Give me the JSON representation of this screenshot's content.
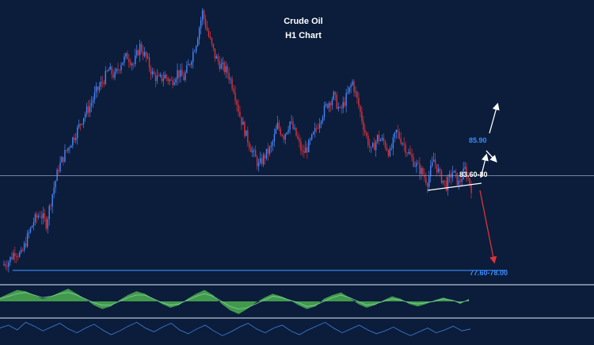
{
  "colors": {
    "background": "#0b1d3a",
    "bull": "#4a86ff",
    "bear": "#e0313a",
    "label_blue": "#3b8cff",
    "arrow_white": "#ffffff",
    "arrow_red": "#e0313a",
    "histogram": "#4caf50",
    "signal_line": "#7fd3a0",
    "rsi_line": "#3f7fe0",
    "separator": "#b8c2d6"
  },
  "chart_data": {
    "type": "line",
    "title": "Crude Oil",
    "subtitle": "H1 Chart",
    "xlabel": "",
    "ylabel": "",
    "ylim": [
      77.2,
      90.9
    ],
    "series": [
      {
        "values": [
          77.9,
          78.1,
          78.6,
          78.4,
          79.3,
          80.1,
          80.5,
          80.0,
          81.5,
          82.8,
          83.5,
          84.1,
          84.7,
          85.4,
          85.9,
          86.6,
          87.1,
          87.7,
          87.4,
          88.1,
          88.4,
          88.0,
          88.9,
          88.3,
          87.5,
          87.2,
          87.4,
          87.1,
          87.6,
          87.3,
          88.1,
          89.1,
          90.6,
          89.4,
          88.4,
          87.9,
          87.6,
          86.8,
          85.4,
          84.4,
          83.6,
          82.9,
          83.4,
          83.8,
          84.9,
          84.4,
          85.1,
          84.4,
          83.5,
          83.9,
          84.6,
          85.4,
          86.0,
          86.4,
          85.6,
          86.3,
          87.1,
          85.9,
          84.6,
          83.6,
          84.3,
          84.1,
          83.5,
          84.6,
          84.1,
          83.5,
          83.0,
          82.6,
          82.1,
          83.2,
          82.4,
          81.9,
          82.6,
          82.0,
          82.7,
          81.8
        ]
      }
    ],
    "levels": [
      {
        "label": "85.90",
        "value": 85.9
      },
      {
        "label": "83.60-80",
        "value": 83.7
      },
      {
        "label": "77.60-78.00",
        "value": 77.8
      }
    ],
    "horizontal_line": 82.4,
    "macd": {
      "histogram": [
        0.3,
        0.6,
        0.9,
        0.8,
        0.5,
        0.2,
        0.4,
        0.7,
        1.0,
        0.6,
        0.2,
        -0.3,
        -0.6,
        -0.4,
        0.1,
        0.5,
        0.8,
        0.6,
        0.2,
        -0.2,
        -0.5,
        -0.3,
        0.2,
        0.6,
        0.9,
        0.5,
        -0.2,
        -0.7,
        -1.0,
        -0.6,
        -0.1,
        0.3,
        0.6,
        0.4,
        0.1,
        -0.3,
        -0.6,
        -0.4,
        0.2,
        0.5,
        0.7,
        0.3,
        -0.2,
        -0.5,
        -0.3,
        0.1,
        0.4,
        0.2,
        -0.2,
        -0.4,
        -0.2,
        0.1,
        0.3,
        0.1,
        -0.2,
        0.2
      ],
      "signal": [
        0.2,
        0.4,
        0.6,
        0.7,
        0.5,
        0.3,
        0.4,
        0.6,
        0.7,
        0.5,
        0.2,
        -0.1,
        -0.3,
        -0.3,
        0.0,
        0.3,
        0.5,
        0.5,
        0.2,
        -0.1,
        -0.3,
        -0.2,
        0.1,
        0.4,
        0.6,
        0.4,
        0.0,
        -0.4,
        -0.6,
        -0.5,
        -0.2,
        0.1,
        0.4,
        0.3,
        0.1,
        -0.1,
        -0.4,
        -0.3,
        0.0,
        0.3,
        0.5,
        0.3,
        0.0,
        -0.3,
        -0.2,
        0.0,
        0.2,
        0.1,
        -0.1,
        -0.2,
        -0.1,
        0.0,
        0.2,
        0.1,
        -0.1,
        0.1
      ]
    },
    "rsi": [
      52,
      55,
      50,
      58,
      54,
      49,
      53,
      57,
      51,
      47,
      52,
      56,
      50,
      45,
      49,
      54,
      58,
      52,
      48,
      53,
      57,
      50,
      46,
      51,
      55,
      49,
      44,
      48,
      53,
      57,
      51,
      47,
      52,
      55,
      49,
      45,
      50,
      54,
      58,
      52,
      47,
      51,
      55,
      50,
      46,
      49,
      53,
      48,
      44,
      48,
      52,
      47,
      50,
      54,
      49,
      51
    ]
  }
}
